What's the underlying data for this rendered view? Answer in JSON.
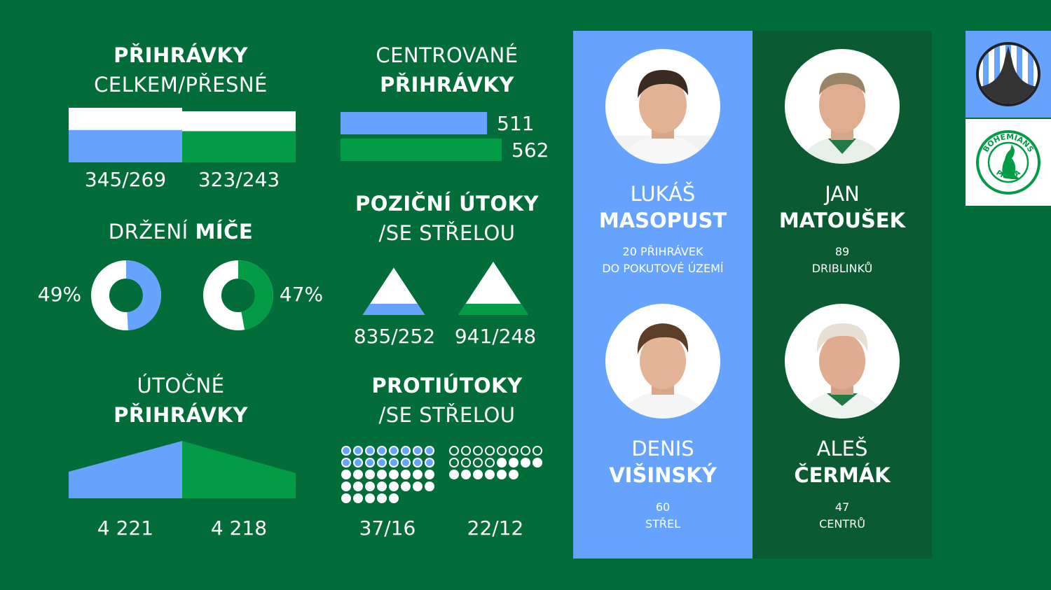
{
  "colors": {
    "background": "#036d39",
    "blue": "#66a3ff",
    "green": "#029b46",
    "dark_green": "#0a5a32",
    "white": "#ffffff",
    "charcoal": "#333333"
  },
  "chart_data": [
    {
      "type": "bar",
      "title_bold": "PŘIHRÁVKY",
      "title_normal": "CELKEM/PŘESNÉ",
      "series": [
        {
          "team": "blue",
          "total": 345,
          "accurate": 269,
          "label": "345/269"
        },
        {
          "team": "green",
          "total": 323,
          "accurate": 243,
          "label": "323/243"
        }
      ]
    },
    {
      "type": "bar",
      "title_normal": "CENTROVANÉ",
      "title_bold": "PŘIHRÁVKY",
      "series": [
        {
          "team": "blue",
          "value": 511,
          "label": "511"
        },
        {
          "team": "green",
          "value": 562,
          "label": "562"
        }
      ]
    },
    {
      "type": "pie",
      "title_normal": "DRŽENÍ",
      "title_bold": "MÍČE",
      "series": [
        {
          "team": "blue",
          "value": 49,
          "label": "49%"
        },
        {
          "team": "green",
          "value": 47,
          "label": "47%"
        }
      ]
    },
    {
      "type": "area",
      "title_bold": "POZIČNÍ ÚTOKY",
      "title_normal": "/SE STŘELOU",
      "series": [
        {
          "team": "blue",
          "total": 835,
          "with_shot": 252,
          "label": "835/252"
        },
        {
          "team": "green",
          "total": 941,
          "with_shot": 248,
          "label": "941/248"
        }
      ]
    },
    {
      "type": "area",
      "title_normal": "ÚTOČNÉ",
      "title_bold": "PŘIHRÁVKY",
      "series": [
        {
          "team": "blue",
          "value": 4221,
          "label": "4 221"
        },
        {
          "team": "green",
          "value": 4218,
          "label": "4 218"
        }
      ]
    },
    {
      "type": "scatter",
      "title_bold": "PROTIÚTOKY",
      "title_normal": "/SE STŘELOU",
      "series": [
        {
          "team": "blue",
          "total": 37,
          "with_shot": 16,
          "label": "37/16"
        },
        {
          "team": "green",
          "total": 22,
          "with_shot": 12,
          "label": "22/12"
        }
      ]
    }
  ],
  "players": [
    {
      "first": "LUKÁŠ",
      "last": "MASOPUST",
      "stat_line1": "20 PŘIHRÁVEK",
      "stat_line2": "DO POKUTOVÉ ÚZEMÍ",
      "team": "blue"
    },
    {
      "first": "JAN",
      "last": "MATOUŠEK",
      "stat_line1": "89",
      "stat_line2": "DRIBLINKŮ",
      "team": "green"
    },
    {
      "first": "DENIS",
      "last": "VIŠINSKÝ",
      "stat_line1": "60",
      "stat_line2": "STŘEL",
      "team": "blue"
    },
    {
      "first": "ALEŠ",
      "last": "ČERMÁK",
      "stat_line1": "47",
      "stat_line2": "CENTRŮ",
      "team": "green"
    }
  ],
  "logos": {
    "bohemians_top": "BOHEMIANS",
    "bohemians_bottom": "PRAHA"
  }
}
